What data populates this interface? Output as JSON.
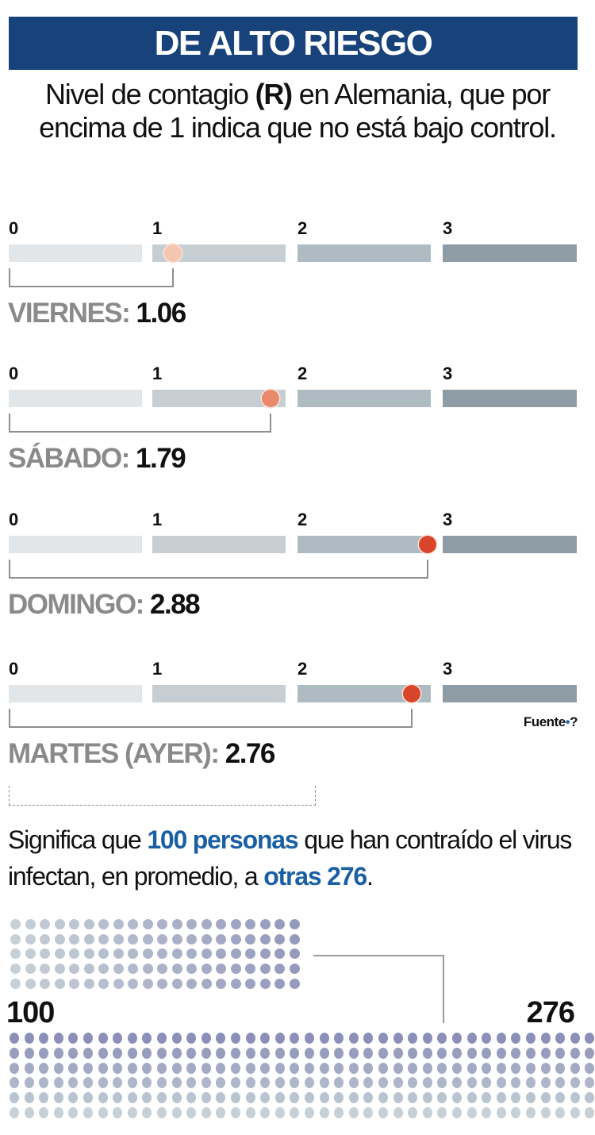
{
  "header": {
    "title": "DE ALTO RIESGO",
    "bg_color": "#17437a"
  },
  "subtitle": {
    "part1": "Nivel de contagio ",
    "bold": "(R)",
    "part2": " en Alemania, que por encima de 1 indica que no está bajo control."
  },
  "scale": {
    "ticks": [
      "0",
      "1",
      "2",
      "3"
    ],
    "segment_colors": [
      "#e2e6e9",
      "#c6ced4",
      "#aebbc3",
      "#8e9ca6"
    ]
  },
  "chart_data": {
    "type": "bar",
    "title": "DE ALTO RIESGO",
    "subtitle": "Nivel de contagio (R) en Alemania, que por encima de 1 indica que no está bajo control.",
    "categories": [
      "VIERNES",
      "SÁBADO",
      "DOMINGO",
      "MARTES (AYER)"
    ],
    "values": [
      1.06,
      1.79,
      2.88,
      2.76
    ],
    "xlim": [
      0,
      4
    ],
    "xticks": [
      "0",
      "1",
      "2",
      "3"
    ],
    "marker_colors": [
      "#f4c6b2",
      "#e8896a",
      "#d9452b",
      "#d9452b"
    ],
    "source": "Fuente•?",
    "pictogram": {
      "infected": 100,
      "infect_others": 276,
      "top_grid": {
        "rows": 5,
        "cols": 20
      },
      "bottom_grid": {
        "rows": 6,
        "cols": 40
      }
    }
  },
  "readings": [
    {
      "label": "VIERNES:",
      "value": "1.06",
      "r": 1.06,
      "dot_color": "#f4c6b2"
    },
    {
      "label": "SÁBADO:",
      "value": "1.79",
      "r": 1.79,
      "dot_color": "#e8896a"
    },
    {
      "label": "DOMINGO:",
      "value": "2.88",
      "r": 2.88,
      "dot_color": "#d9452b"
    },
    {
      "label": "MARTES (AYER):",
      "value": "2.76",
      "r": 2.76,
      "dot_color": "#d9452b"
    }
  ],
  "source": {
    "text": "Fuente",
    "bullet": "•",
    "mark": "?"
  },
  "explanation": {
    "t1": "Significa que ",
    "hl1": "100 personas",
    "t2": " que han contraído el virus infectan, en promedio, a ",
    "hl2": "otras 276",
    "t3": "."
  },
  "pictogram": {
    "left_number": "100",
    "right_number": "276"
  }
}
